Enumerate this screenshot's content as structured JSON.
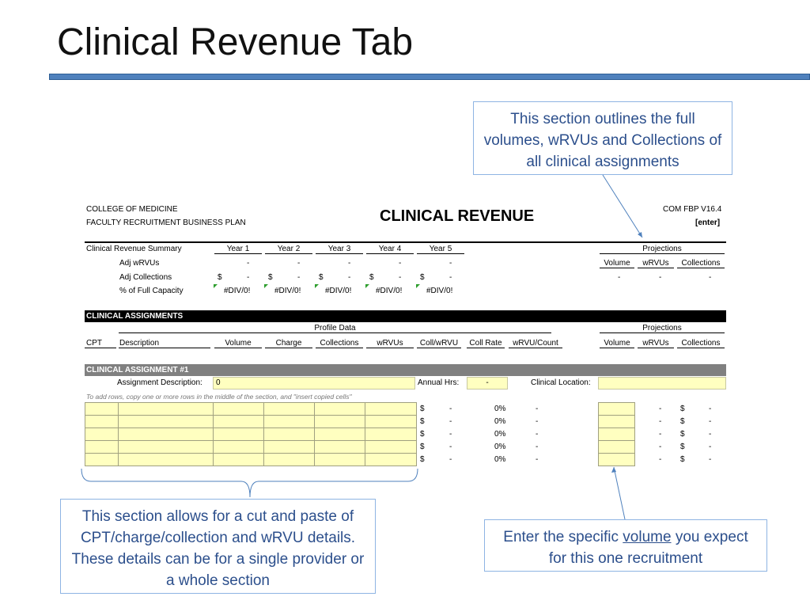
{
  "slide": {
    "title": "Clinical Revenue Tab"
  },
  "callouts": {
    "top_right": "This section outlines the full volumes, wRVUs and Collections of all clinical assignments",
    "bottom_left": "This section allows for a cut and paste of CPT/charge/collection and wRVU details. These details can be for a single provider or a whole section",
    "bottom_right_pre": "Enter the specific ",
    "bottom_right_u": "volume",
    "bottom_right_post": " you expect for this one recruitment"
  },
  "sheet": {
    "org_line1": "COLLEGE OF MEDICINE",
    "org_line2": "FACULTY RECRUITMENT BUSINESS PLAN",
    "title": "CLINICAL REVENUE",
    "version": "COM FBP V16.4",
    "enter": "[enter]",
    "summary": {
      "label": "Clinical Revenue Summary",
      "years": [
        "Year 1",
        "Year 2",
        "Year 3",
        "Year 4",
        "Year 5"
      ],
      "rows": [
        {
          "label": "Adj wRVUs",
          "values": [
            "-",
            "-",
            "-",
            "-",
            "-"
          ]
        },
        {
          "label": "Adj Collections",
          "currency": "$",
          "values": [
            "-",
            "-",
            "-",
            "-",
            "-"
          ]
        },
        {
          "label": "% of Full Capacity",
          "values": [
            "#DIV/0!",
            "#DIV/0!",
            "#DIV/0!",
            "#DIV/0!",
            "#DIV/0!"
          ]
        }
      ],
      "projections_label": "Projections",
      "projections_cols": [
        "Volume",
        "wRVUs",
        "Collections"
      ],
      "projections_values": [
        "-",
        "-",
        "-"
      ]
    },
    "assignments": {
      "header": "CLINICAL ASSIGNMENTS",
      "profile_label": "Profile Data",
      "projections_label": "Projections",
      "columns": [
        "CPT",
        "Description",
        "Volume",
        "Charge",
        "Collections",
        "wRVUs",
        "Coll/wRVU",
        "Coll Rate",
        "wRVU/Count"
      ],
      "proj_columns": [
        "Volume",
        "wRVUs",
        "Collections"
      ]
    },
    "assignment1": {
      "header": "CLINICAL ASSIGNMENT #1",
      "desc_label": "Assignment Description:",
      "desc_value": "0",
      "hrs_label": "Annual Hrs:",
      "hrs_value": "-",
      "location_label": "Clinical Location:",
      "note": "To add rows, copy one or more rows in the middle of the section, and \"insert copied cells\"",
      "rows": [
        {
          "cur": "$",
          "coll_wrvu": "-",
          "coll_rate": "0%",
          "wrvu_count": "-",
          "proj_wrvus": "-",
          "proj_cur": "$",
          "proj_coll": "-"
        },
        {
          "cur": "$",
          "coll_wrvu": "-",
          "coll_rate": "0%",
          "wrvu_count": "-",
          "proj_wrvus": "-",
          "proj_cur": "$",
          "proj_coll": "-"
        },
        {
          "cur": "$",
          "coll_wrvu": "-",
          "coll_rate": "0%",
          "wrvu_count": "-",
          "proj_wrvus": "-",
          "proj_cur": "$",
          "proj_coll": "-"
        },
        {
          "cur": "$",
          "coll_wrvu": "-",
          "coll_rate": "0%",
          "wrvu_count": "-",
          "proj_wrvus": "-",
          "proj_cur": "$",
          "proj_coll": "-"
        },
        {
          "cur": "$",
          "coll_wrvu": "-",
          "coll_rate": "0%",
          "wrvu_count": "-",
          "proj_wrvus": "-",
          "proj_cur": "$",
          "proj_coll": "-"
        }
      ]
    }
  },
  "colors": {
    "accent": "#4f81bd",
    "callout_text": "#2c4f8c",
    "input_fill": "#ffffc0"
  }
}
